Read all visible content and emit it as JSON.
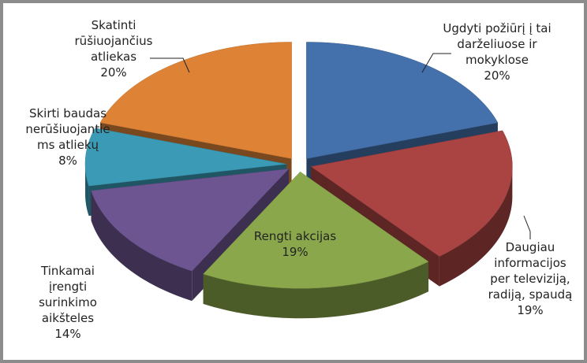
{
  "chart_data": {
    "type": "pie3d",
    "categories": [
      "Ugdyti požiūrį į tai darželiuose ir mokyklose",
      "Daugiau informacijos per televiziją, radiją, spaudą",
      "Rengti akcijas",
      "Tinkamai įrengti surinkimo aikšteles",
      "Skirti baudas nerūšiuojantiems atliekų",
      "Skatinti rūšiuojančius atliekas"
    ],
    "values": [
      20,
      19,
      19,
      14,
      8,
      20
    ],
    "value_labels": [
      "20%",
      "19%",
      "19%",
      "14%",
      "8%",
      "20%"
    ],
    "colors": [
      "#4470ab",
      "#a94442",
      "#8aa84b",
      "#6d5592",
      "#3b9bb6",
      "#de8236"
    ]
  }
}
